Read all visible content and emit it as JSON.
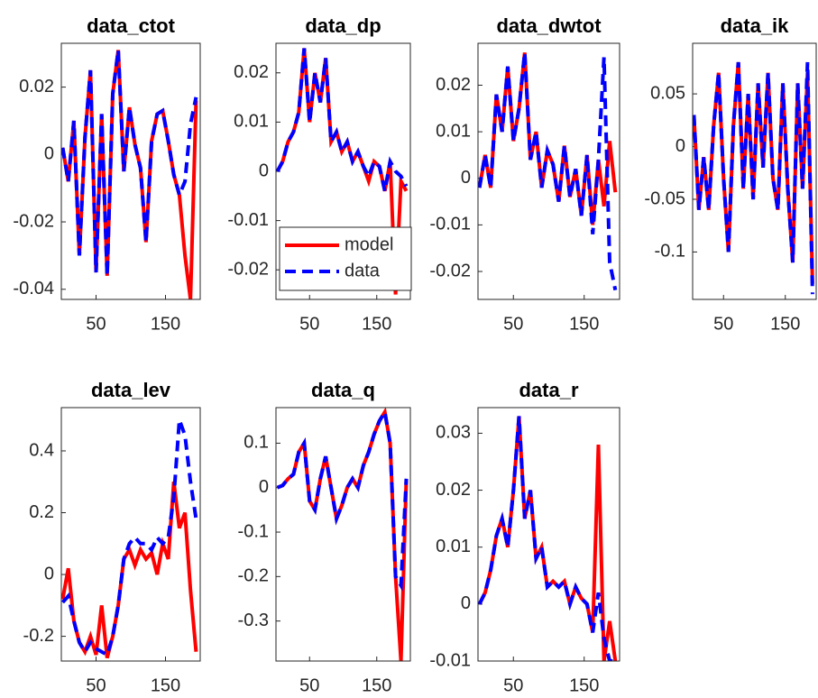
{
  "chart_data": [
    {
      "type": "line",
      "title": "data_ctot",
      "x": [
        2,
        10,
        18,
        26,
        34,
        42,
        50,
        58,
        66,
        74,
        82,
        90,
        98,
        106,
        114,
        122,
        130,
        138,
        146,
        154,
        162,
        170,
        178,
        186,
        194
      ],
      "xlim": [
        0,
        200
      ],
      "xticks": [
        50,
        150
      ],
      "ylim": [
        -0.043,
        0.033
      ],
      "yticks": [
        -0.04,
        -0.02,
        0,
        0.02
      ],
      "series": [
        {
          "color": "#ff0000",
          "style": "solid",
          "values": [
            0.002,
            -0.008,
            0.01,
            -0.03,
            0.005,
            0.025,
            -0.035,
            0.012,
            -0.036,
            0.018,
            0.031,
            -0.005,
            0.014,
            0.003,
            -0.004,
            -0.026,
            0.004,
            0.012,
            0.013,
            0.004,
            -0.006,
            -0.012,
            -0.03,
            -0.043,
            0.016
          ]
        },
        {
          "color": "#0000ff",
          "style": "dashed",
          "values": [
            0.002,
            -0.008,
            0.01,
            -0.03,
            0.005,
            0.025,
            -0.035,
            0.012,
            -0.036,
            0.018,
            0.031,
            -0.005,
            0.014,
            0.003,
            -0.004,
            -0.026,
            0.004,
            0.012,
            0.013,
            0.004,
            -0.006,
            -0.012,
            -0.008,
            0.009,
            0.017
          ]
        }
      ]
    },
    {
      "type": "line",
      "title": "data_dp",
      "x": [
        2,
        10,
        18,
        26,
        34,
        42,
        50,
        58,
        66,
        74,
        82,
        90,
        98,
        106,
        114,
        122,
        130,
        138,
        146,
        154,
        162,
        170,
        178,
        186,
        194
      ],
      "xlim": [
        0,
        200
      ],
      "xticks": [
        50,
        150
      ],
      "ylim": [
        -0.026,
        0.026
      ],
      "yticks": [
        -0.02,
        -0.01,
        0,
        0.01,
        0.02
      ],
      "legend": "southwest",
      "series": [
        {
          "name": "model",
          "color": "#ff0000",
          "style": "solid",
          "values": [
            0,
            0.002,
            0.006,
            0.008,
            0.012,
            0.025,
            0.01,
            0.02,
            0.014,
            0.023,
            0.006,
            0.008,
            0.004,
            0.006,
            0.002,
            0.004,
            0.001,
            -0.002,
            0.002,
            0.001,
            -0.004,
            0.002,
            -0.025,
            -0.002,
            -0.004
          ]
        },
        {
          "name": "data",
          "color": "#0000ff",
          "style": "dashed",
          "values": [
            0,
            0.002,
            0.006,
            0.008,
            0.012,
            0.025,
            0.01,
            0.02,
            0.014,
            0.023,
            0.006,
            0.008,
            0.004,
            0.006,
            0.002,
            0.004,
            0.001,
            -0.001,
            0.002,
            0.001,
            -0.004,
            0.002,
            0,
            -0.001,
            -0.003
          ]
        }
      ]
    },
    {
      "type": "line",
      "title": "data_dwtot",
      "x": [
        2,
        10,
        18,
        26,
        34,
        42,
        50,
        58,
        66,
        74,
        82,
        90,
        98,
        106,
        114,
        122,
        130,
        138,
        146,
        154,
        162,
        170,
        178,
        186,
        194
      ],
      "xlim": [
        0,
        200
      ],
      "xticks": [
        50,
        150
      ],
      "ylim": [
        -0.026,
        0.029
      ],
      "yticks": [
        -0.02,
        -0.01,
        0,
        0.01,
        0.02
      ],
      "series": [
        {
          "color": "#ff0000",
          "style": "solid",
          "values": [
            -0.002,
            0.005,
            -0.002,
            0.018,
            0.01,
            0.024,
            0.008,
            0.015,
            0.027,
            0.004,
            0.01,
            -0.002,
            0.006,
            0.003,
            -0.005,
            0.007,
            -0.004,
            0.002,
            -0.008,
            0.005,
            -0.01,
            0.004,
            -0.006,
            0.008,
            -0.003
          ]
        },
        {
          "color": "#0000ff",
          "style": "dashed",
          "values": [
            -0.002,
            0.005,
            -0.002,
            0.018,
            0.01,
            0.024,
            0.008,
            0.015,
            0.027,
            0.004,
            0.01,
            -0.002,
            0.006,
            0.003,
            -0.005,
            0.007,
            -0.004,
            0.002,
            -0.008,
            0.005,
            -0.012,
            0.004,
            0.026,
            -0.018,
            -0.024
          ]
        }
      ]
    },
    {
      "type": "line",
      "title": "data_ik",
      "x": [
        2,
        10,
        18,
        26,
        34,
        42,
        50,
        58,
        66,
        74,
        82,
        90,
        98,
        106,
        114,
        122,
        130,
        138,
        146,
        154,
        162,
        170,
        178,
        186,
        194
      ],
      "xlim": [
        0,
        200
      ],
      "xticks": [
        50,
        150
      ],
      "ylim": [
        -0.145,
        0.098
      ],
      "yticks": [
        -0.1,
        -0.05,
        0,
        0.05
      ],
      "series": [
        {
          "color": "#ff0000",
          "style": "solid",
          "values": [
            0.03,
            -0.06,
            -0.01,
            -0.06,
            0.02,
            0.07,
            -0.03,
            -0.1,
            0.02,
            0.08,
            -0.04,
            0.05,
            -0.05,
            0.06,
            -0.02,
            0.07,
            -0.03,
            -0.06,
            0.06,
            -0.04,
            -0.11,
            0.06,
            -0.04,
            0.07,
            -0.13
          ]
        },
        {
          "color": "#0000ff",
          "style": "dashed",
          "values": [
            0.03,
            -0.06,
            -0.01,
            -0.06,
            0.02,
            0.07,
            -0.03,
            -0.1,
            0.02,
            0.08,
            -0.04,
            0.05,
            -0.05,
            0.06,
            -0.02,
            0.07,
            -0.03,
            -0.06,
            0.06,
            -0.04,
            -0.11,
            0.06,
            -0.04,
            0.08,
            -0.14
          ]
        }
      ]
    },
    {
      "type": "line",
      "title": "data_lev",
      "x": [
        2,
        10,
        18,
        26,
        34,
        42,
        50,
        58,
        66,
        74,
        82,
        90,
        98,
        106,
        114,
        122,
        130,
        138,
        146,
        154,
        162,
        170,
        178,
        186,
        194
      ],
      "xlim": [
        0,
        200
      ],
      "xticks": [
        50,
        150
      ],
      "ylim": [
        -0.28,
        0.54
      ],
      "yticks": [
        -0.2,
        0,
        0.2,
        0.4
      ],
      "series": [
        {
          "color": "#ff0000",
          "style": "solid",
          "values": [
            -0.08,
            0.02,
            -0.15,
            -0.22,
            -0.25,
            -0.2,
            -0.26,
            -0.1,
            -0.27,
            -0.2,
            -0.1,
            0.05,
            0.08,
            0.03,
            0.08,
            0.05,
            0.07,
            0,
            0.1,
            0.05,
            0.3,
            0.15,
            0.2,
            -0.05,
            -0.25
          ]
        },
        {
          "color": "#0000ff",
          "style": "dashed",
          "values": [
            -0.09,
            -0.07,
            -0.15,
            -0.22,
            -0.25,
            -0.22,
            -0.24,
            -0.25,
            -0.26,
            -0.2,
            -0.1,
            0.05,
            0.1,
            0.12,
            0.1,
            0.1,
            0.08,
            0.12,
            0.1,
            0.12,
            0.25,
            0.5,
            0.45,
            0.3,
            0.18
          ]
        }
      ]
    },
    {
      "type": "line",
      "title": "data_q",
      "x": [
        2,
        10,
        18,
        26,
        34,
        42,
        50,
        58,
        66,
        74,
        82,
        90,
        98,
        106,
        114,
        122,
        130,
        138,
        146,
        154,
        162,
        170,
        178,
        186,
        194
      ],
      "xlim": [
        0,
        200
      ],
      "xticks": [
        50,
        150
      ],
      "ylim": [
        -0.39,
        0.18
      ],
      "yticks": [
        -0.3,
        -0.2,
        -0.1,
        0,
        0.1
      ],
      "series": [
        {
          "color": "#ff0000",
          "style": "solid",
          "values": [
            0,
            0.005,
            0.02,
            0.03,
            0.08,
            0.1,
            -0.03,
            -0.05,
            0.02,
            0.07,
            0,
            -0.07,
            -0.04,
            0,
            0.02,
            0,
            0.05,
            0.08,
            0.12,
            0.15,
            0.17,
            0.1,
            -0.2,
            -0.39,
            0.02
          ]
        },
        {
          "color": "#0000ff",
          "style": "dashed",
          "values": [
            0,
            0.005,
            0.02,
            0.03,
            0.08,
            0.1,
            -0.03,
            -0.05,
            0.02,
            0.07,
            0,
            -0.07,
            -0.04,
            0,
            0.02,
            0,
            0.05,
            0.08,
            0.12,
            0.15,
            0.17,
            0.1,
            -0.2,
            -0.22,
            0.02
          ]
        }
      ]
    },
    {
      "type": "line",
      "title": "data_r",
      "x": [
        2,
        10,
        18,
        26,
        34,
        42,
        50,
        58,
        66,
        74,
        82,
        90,
        98,
        106,
        114,
        122,
        130,
        138,
        146,
        154,
        162,
        170,
        178,
        186,
        194
      ],
      "xlim": [
        0,
        200
      ],
      "xticks": [
        50,
        150
      ],
      "ylim": [
        -0.01,
        0.0345
      ],
      "yticks": [
        -0.01,
        0,
        0.01,
        0.02,
        0.03
      ],
      "series": [
        {
          "color": "#ff0000",
          "style": "solid",
          "values": [
            0,
            0.002,
            0.006,
            0.012,
            0.015,
            0.01,
            0.02,
            0.033,
            0.015,
            0.02,
            0.008,
            0.01,
            0.003,
            0.004,
            0.003,
            0.004,
            0,
            0.003,
            0.001,
            0,
            -0.005,
            0.028,
            -0.01,
            -0.003,
            -0.01
          ]
        },
        {
          "color": "#0000ff",
          "style": "dashed",
          "values": [
            0,
            0.002,
            0.006,
            0.012,
            0.015,
            0.01,
            0.02,
            0.033,
            0.015,
            0.02,
            0.008,
            0.01,
            0.003,
            0.004,
            0.003,
            0.004,
            0,
            0.003,
            0.001,
            0,
            -0.005,
            0.002,
            -0.006,
            -0.01,
            -0.01
          ]
        }
      ]
    }
  ]
}
